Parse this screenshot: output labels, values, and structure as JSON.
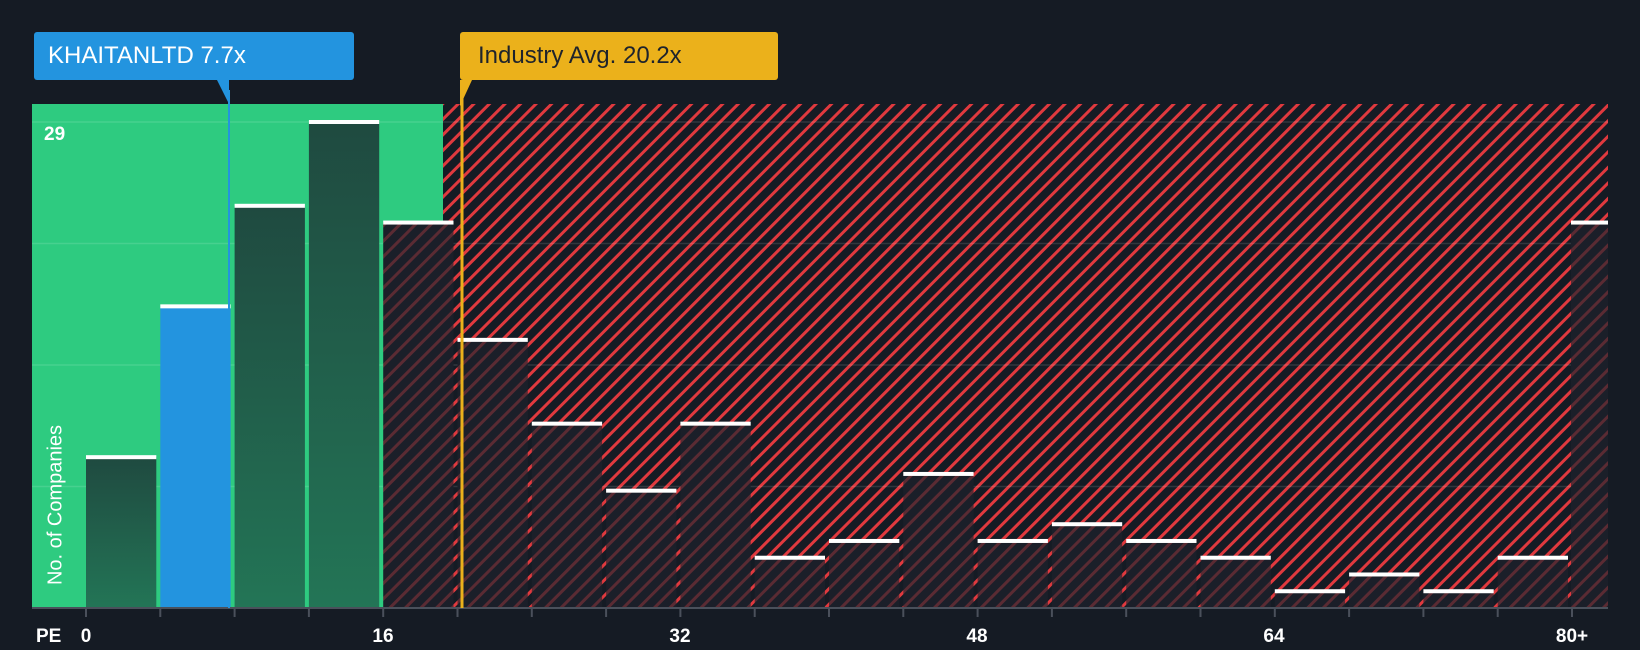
{
  "company_callout": {
    "label": "KHAITANLTD 7.7x"
  },
  "industry_callout": {
    "label": "Industry Avg. 20.2x"
  },
  "y_axis": {
    "label": "No. of Companies",
    "max_label": "29"
  },
  "x_axis": {
    "title": "PE",
    "tick_labels": [
      "0",
      "16",
      "32",
      "48",
      "64",
      "80+"
    ]
  },
  "colors": {
    "background": "#151b24",
    "undervalued_zone": "#2ecb80",
    "overvalued_hatch": "#e0393e",
    "company_bar": "#2394df",
    "industry_marker": "#ebb11b",
    "bar_dark_green": "#1f4a3f",
    "bar_dark": "#1b1f29",
    "bar_cap": "#ffffff"
  },
  "chart_data": {
    "type": "bar",
    "title": "",
    "xlabel": "PE",
    "ylabel": "No. of Companies",
    "categories": [
      "0-4",
      "4-8",
      "8-12",
      "12-16",
      "16-20",
      "20-24",
      "24-28",
      "28-32",
      "32-36",
      "36-40",
      "40-44",
      "44-48",
      "48-52",
      "52-56",
      "56-60",
      "60-64",
      "64-68",
      "68-72",
      "72-76",
      "76-80",
      "80+"
    ],
    "values": [
      9,
      18,
      24,
      29,
      23,
      16,
      11,
      7,
      11,
      3,
      4,
      8,
      4,
      5,
      4,
      3,
      1,
      2,
      1,
      3,
      23
    ],
    "highlight_bin_index": 1,
    "company": {
      "name": "KHAITANLTD",
      "pe": 7.7
    },
    "industry_average_pe": 20.2,
    "x_ticks": [
      0,
      16,
      32,
      48,
      64,
      "80+"
    ],
    "ylim": [
      0,
      29
    ],
    "y_tick_labels": [
      "29"
    ],
    "grid": true,
    "legend": "none",
    "zones": [
      {
        "name": "below industry average",
        "from": 0,
        "to": 20.2,
        "color": "#2ecb80"
      },
      {
        "name": "above industry average",
        "from": 20.2,
        "to": "80+",
        "color": "#e0393e",
        "pattern": "hatched"
      }
    ]
  }
}
